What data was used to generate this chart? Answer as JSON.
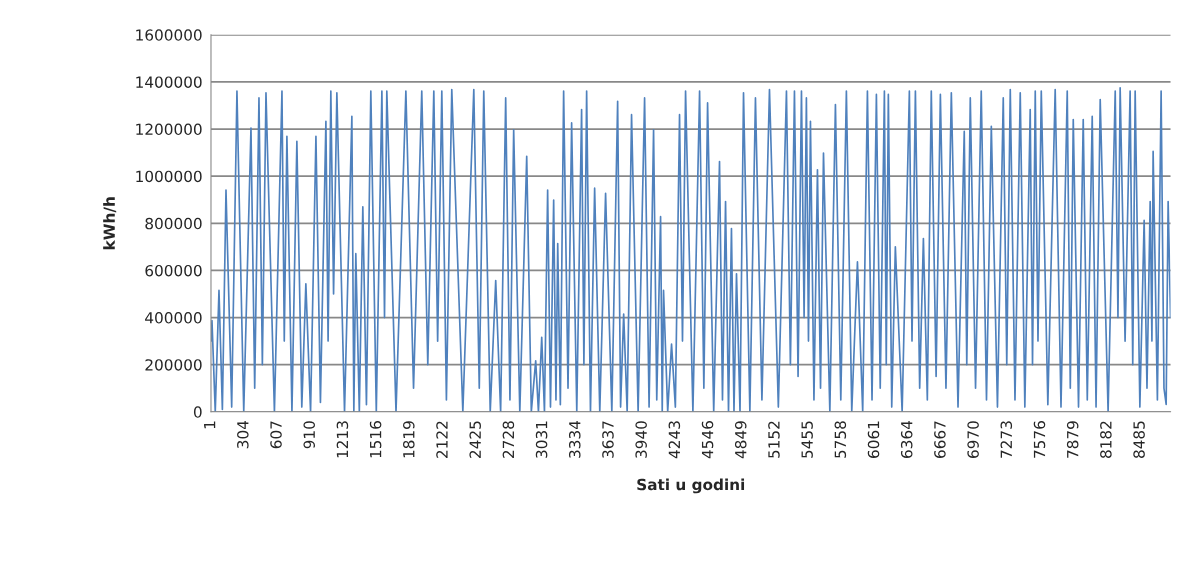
{
  "chart_data": {
    "type": "line",
    "xlabel": "Sati u godini",
    "ylabel": "kWh/h",
    "xlim": [
      1,
      8760
    ],
    "ylim": [
      0,
      1600000
    ],
    "xticks": [
      1,
      304,
      607,
      910,
      1213,
      1516,
      1819,
      2122,
      2425,
      2728,
      3031,
      3334,
      3637,
      3940,
      4243,
      4546,
      4849,
      5152,
      5455,
      5758,
      6061,
      6364,
      6667,
      6970,
      7273,
      7576,
      7879,
      8182,
      8485
    ],
    "yticks": [
      0,
      200000,
      400000,
      600000,
      800000,
      1000000,
      1200000,
      1400000,
      1600000
    ],
    "grid": "y",
    "marker": "none",
    "line_style": "solid",
    "series": [
      {
        "color": "#4f81bd",
        "x": [
          1,
          10,
          40,
          74,
          105,
          138,
          190,
          238,
          300,
          366,
          400,
          439,
          470,
          503,
          580,
          649,
          670,
          694,
          740,
          785,
          830,
          867,
          910,
          959,
          1000,
          1050,
          1070,
          1095,
          1120,
          1150,
          1220,
          1287,
          1305,
          1323,
          1355,
          1387,
          1420,
          1460,
          1510,
          1561,
          1585,
          1606,
          1690,
          1780,
          1850,
          1925,
          1980,
          2035,
          2070,
          2108,
          2150,
          2199,
          2300,
          2400,
          2450,
          2491,
          2550,
          2600,
          2645,
          2691,
          2730,
          2764,
          2820,
          2883,
          2925,
          2965,
          2990,
          3020,
          3045,
          3074,
          3100,
          3129,
          3150,
          3166,
          3190,
          3220,
          3260,
          3293,
          3340,
          3384,
          3405,
          3430,
          3465,
          3503,
          3550,
          3603,
          3660,
          3713,
          3740,
          3768,
          3800,
          3840,
          3900,
          3959,
          4000,
          4041,
          4070,
          4105,
          4120,
          4132,
          4170,
          4205,
          4240,
          4278,
          4305,
          4333,
          4400,
          4461,
          4500,
          4534,
          4590,
          4643,
          4670,
          4698,
          4725,
          4752,
          4775,
          4798,
          4830,
          4862,
          4920,
          4971,
          5030,
          5099,
          5180,
          5254,
          5290,
          5327,
          5360,
          5391,
          5415,
          5436,
          5455,
          5473,
          5505,
          5537,
          5565,
          5592,
          5650,
          5701,
          5750,
          5801,
          5850,
          5902,
          5950,
          5993,
          6035,
          6075,
          6110,
          6148,
          6165,
          6184,
          6215,
          6248,
          6310,
          6376,
          6400,
          6431,
          6470,
          6504,
          6540,
          6576,
          6620,
          6659,
          6710,
          6759,
          6820,
          6877,
          6900,
          6932,
          6980,
          7032,
          7080,
          7124,
          7180,
          7233,
          7265,
          7297,
          7340,
          7388,
          7430,
          7479,
          7500,
          7525,
          7550,
          7580,
          7640,
          7707,
          7760,
          7817,
          7845,
          7872,
          7920,
          7963,
          8000,
          8045,
          8080,
          8118,
          8190,
          8255,
          8280,
          8300,
          8345,
          8391,
          8415,
          8437,
          8480,
          8519,
          8545,
          8574,
          8590,
          8601,
          8640,
          8674,
          8700,
          8720,
          8738,
          8760
        ],
        "values": [
          300000,
          387000,
          0,
          515000,
          10000,
          941000,
          20000,
          1361000,
          0,
          1204000,
          100000,
          1332000,
          200000,
          1354000,
          0,
          1361000,
          300000,
          1169000,
          0,
          1148000,
          20000,
          543000,
          0,
          1169000,
          40000,
          1233000,
          300000,
          1361000,
          500000,
          1354000,
          0,
          1254000,
          0,
          671000,
          0,
          870000,
          30000,
          1361000,
          0,
          1361000,
          400000,
          1361000,
          0,
          1361000,
          100000,
          1361000,
          200000,
          1361000,
          300000,
          1361000,
          50000,
          1368000,
          0,
          1368000,
          100000,
          1361000,
          0,
          557000,
          0,
          1332000,
          50000,
          1197000,
          0,
          1084000,
          0,
          216000,
          0,
          316000,
          0,
          941000,
          20000,
          899000,
          50000,
          714000,
          30000,
          1361000,
          100000,
          1226000,
          0,
          1283000,
          200000,
          1361000,
          0,
          949000,
          0,
          927000,
          0,
          1318000,
          20000,
          415000,
          0,
          1261000,
          0,
          1332000,
          20000,
          1197000,
          50000,
          828000,
          0,
          515000,
          0,
          287000,
          20000,
          1261000,
          300000,
          1361000,
          0,
          1361000,
          100000,
          1311000,
          0,
          1062000,
          50000,
          892000,
          0,
          778000,
          0,
          586000,
          0,
          1354000,
          0,
          1332000,
          50000,
          1368000,
          20000,
          1361000,
          200000,
          1361000,
          150000,
          1361000,
          400000,
          1332000,
          300000,
          1233000,
          50000,
          1027000,
          100000,
          1098000,
          0,
          1304000,
          50000,
          1361000,
          0,
          636000,
          0,
          1361000,
          50000,
          1347000,
          100000,
          1361000,
          200000,
          1347000,
          20000,
          700000,
          0,
          1361000,
          300000,
          1361000,
          100000,
          735000,
          50000,
          1361000,
          150000,
          1347000,
          100000,
          1354000,
          20000,
          1190000,
          200000,
          1332000,
          100000,
          1361000,
          50000,
          1212000,
          20000,
          1332000,
          200000,
          1368000,
          50000,
          1354000,
          20000,
          1283000,
          200000,
          1361000,
          300000,
          1361000,
          30000,
          1368000,
          20000,
          1361000,
          100000,
          1240000,
          20000,
          1240000,
          50000,
          1254000,
          20000,
          1325000,
          0,
          1361000,
          400000,
          1375000,
          300000,
          1361000,
          200000,
          1361000,
          20000,
          813000,
          100000,
          892000,
          300000,
          1105000,
          50000,
          1361000,
          100000,
          31000,
          892000,
          400000
        ]
      }
    ]
  }
}
